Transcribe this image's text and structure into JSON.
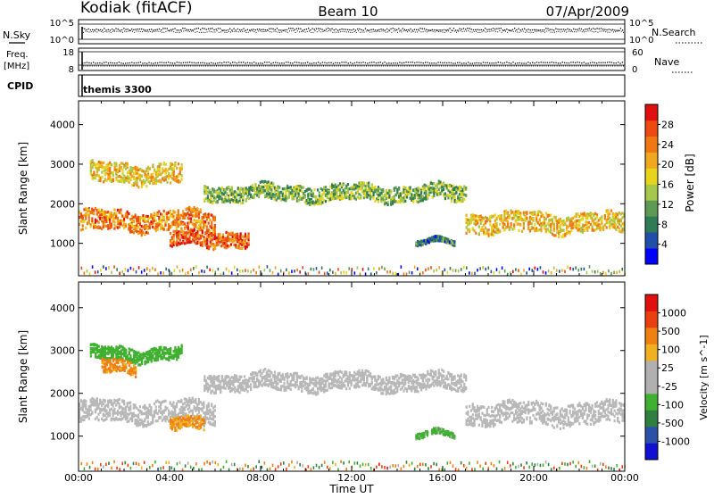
{
  "header": {
    "station": "Kodiak (fitACF)",
    "beam": "Beam 10",
    "date": "07/Apr/2009"
  },
  "noise_panel": {
    "left_label": "N.Sky",
    "right_label": "N.Search",
    "left_ticks": [
      "10^5",
      "10^0"
    ],
    "right_ticks": [
      "10^5",
      "10^0"
    ]
  },
  "freq_panel": {
    "left_label_1": "Freq.",
    "left_label_2": "[MHz]",
    "right_label": "Nave",
    "left_ticks": [
      "18",
      "8"
    ],
    "right_ticks": [
      "60",
      "0"
    ]
  },
  "cpid_panel": {
    "label": "CPID",
    "value": "themis 3300"
  },
  "x_axis": {
    "label": "Time UT",
    "ticks": [
      "00:00",
      "04:00",
      "08:00",
      "12:00",
      "16:00",
      "20:00",
      "00:00"
    ]
  },
  "power_panel": {
    "ylabel": "Slant Range [km]",
    "yticks": [
      "4000",
      "3000",
      "2000",
      "1000"
    ],
    "colorbar_label": "Power [dB]",
    "colorbar_ticks": [
      "28",
      "24",
      "20",
      "16",
      "12",
      "8",
      "4"
    ]
  },
  "velocity_panel": {
    "ylabel": "Slant Range [km]",
    "yticks": [
      "4000",
      "3000",
      "2000",
      "1000"
    ],
    "colorbar_label": "Velocity [m s^-1]",
    "colorbar_ticks": [
      "1000",
      "500",
      "100",
      "25",
      "-25",
      "-100",
      "-500",
      "-1000"
    ]
  },
  "colors": {
    "power_scale": [
      "#0000ff",
      "#1f4fa8",
      "#2e7b55",
      "#5f9a54",
      "#a5c84a",
      "#e8d41c",
      "#f0a81e",
      "#f07814",
      "#ec4a10",
      "#e01010"
    ],
    "velocity_scale": [
      "#1010d0",
      "#2a50a8",
      "#2d8040",
      "#40b030",
      "#b0b0b0",
      "#b0b0b0",
      "#f0b020",
      "#f08010",
      "#e84010",
      "#e01010"
    ],
    "ground_scatter": "#b8b8b8"
  },
  "chart_data": [
    {
      "type": "heatmap",
      "title": "Power",
      "xlabel": "Time UT",
      "ylabel": "Slant Range [km]",
      "xlim": [
        0,
        24
      ],
      "ylim": [
        180,
        4600
      ],
      "colorbar": {
        "label": "Power [dB]",
        "range": [
          0,
          30
        ]
      },
      "bands": [
        {
          "t_start": 0,
          "t_end": 6,
          "range_km_center": 1600,
          "range_km_halfwidth": 250,
          "power_db": 22
        },
        {
          "t_start": 0.5,
          "t_end": 4.5,
          "range_km_center": 2800,
          "range_km_halfwidth": 250,
          "power_db": 18
        },
        {
          "t_start": 4,
          "t_end": 7.5,
          "range_km_center": 1150,
          "range_km_halfwidth": 200,
          "power_db": 24
        },
        {
          "t_start": 5.5,
          "t_end": 17,
          "range_km_center": 2300,
          "range_km_halfwidth": 200,
          "power_db": 12
        },
        {
          "t_start": 17,
          "t_end": 24,
          "range_km_center": 1550,
          "range_km_halfwidth": 250,
          "power_db": 18
        },
        {
          "t_start": 14.8,
          "t_end": 16.5,
          "range_km_center": 1050,
          "range_km_halfwidth": 60,
          "power_db": 8
        }
      ]
    },
    {
      "type": "heatmap",
      "title": "Velocity",
      "xlabel": "Time UT",
      "ylabel": "Slant Range [km]",
      "xlim": [
        0,
        24
      ],
      "ylim": [
        180,
        4600
      ],
      "colorbar": {
        "label": "Velocity [m s^-1]",
        "range": [
          -1000,
          1000
        ]
      },
      "bands": [
        {
          "t_start": 0,
          "t_end": 6,
          "range_km_center": 1600,
          "range_km_halfwidth": 250,
          "velocity": 0,
          "ground_scatter": true
        },
        {
          "t_start": 0.5,
          "t_end": 4.5,
          "range_km_center": 2950,
          "range_km_halfwidth": 150,
          "velocity": -300
        },
        {
          "t_start": 1,
          "t_end": 2.5,
          "range_km_center": 2650,
          "range_km_halfwidth": 150,
          "velocity": 150
        },
        {
          "t_start": 4,
          "t_end": 5.5,
          "range_km_center": 1300,
          "range_km_halfwidth": 150,
          "velocity": 120
        },
        {
          "t_start": 5.5,
          "t_end": 17,
          "range_km_center": 2300,
          "range_km_halfwidth": 200,
          "velocity": 0,
          "ground_scatter": true
        },
        {
          "t_start": 17,
          "t_end": 24,
          "range_km_center": 1550,
          "range_km_halfwidth": 250,
          "velocity": 0,
          "ground_scatter": true
        },
        {
          "t_start": 14.8,
          "t_end": 15.3,
          "range_km_center": 1050,
          "range_km_halfwidth": 60,
          "velocity": -150
        },
        {
          "t_start": 15.5,
          "t_end": 16.5,
          "range_km_center": 1050,
          "range_km_halfwidth": 60,
          "velocity": -150
        }
      ]
    }
  ]
}
